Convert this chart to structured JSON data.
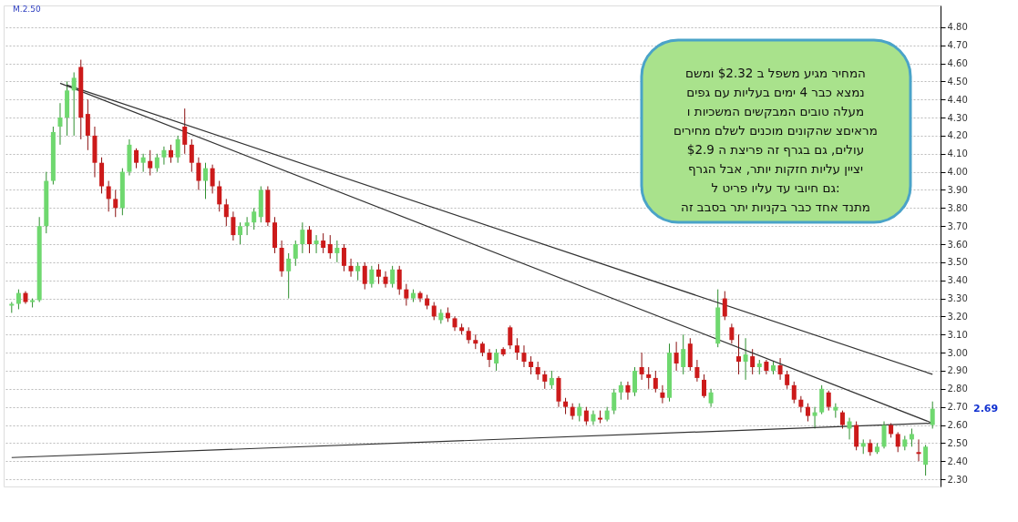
{
  "chart_data": {
    "type": "candlestick",
    "categories": [
      null,
      null,
      null,
      null,
      null,
      null,
      null,
      null,
      null,
      null,
      null,
      null,
      null,
      null,
      null,
      null,
      null,
      null,
      null,
      null,
      null,
      null,
      null,
      null,
      null,
      null,
      null,
      null,
      null,
      null,
      null,
      null,
      null,
      null,
      null,
      null,
      null,
      null,
      null,
      null,
      null,
      null,
      null,
      null,
      null,
      null,
      null,
      null,
      null,
      null,
      null,
      null,
      null,
      null,
      null,
      null,
      null,
      null,
      null,
      null,
      null,
      null,
      null,
      null,
      null,
      null,
      null,
      null,
      null,
      null,
      null,
      null,
      null,
      null,
      null,
      null,
      null,
      null,
      null,
      null,
      null,
      null,
      null,
      null,
      null,
      null,
      null,
      null,
      null,
      null,
      null,
      null,
      null,
      null,
      null,
      null,
      null,
      null,
      null,
      null,
      null,
      null,
      null,
      null,
      null,
      null,
      null,
      null,
      null,
      null,
      null,
      null,
      null,
      null,
      null,
      null,
      null,
      null,
      null,
      null,
      null,
      null,
      null,
      null,
      null,
      null,
      null,
      null,
      null,
      null,
      null,
      null,
      null,
      null
    ],
    "ohlc": [
      [
        3.26,
        3.28,
        3.22,
        3.27
      ],
      [
        3.27,
        3.35,
        3.24,
        3.33
      ],
      [
        3.33,
        3.34,
        3.27,
        3.28
      ],
      [
        3.28,
        3.3,
        3.25,
        3.29
      ],
      [
        3.29,
        3.75,
        3.28,
        3.7
      ],
      [
        3.7,
        4.0,
        3.66,
        3.95
      ],
      [
        3.95,
        4.25,
        3.93,
        4.22
      ],
      [
        4.25,
        4.38,
        4.15,
        4.3
      ],
      [
        4.3,
        4.5,
        4.2,
        4.45
      ],
      [
        4.45,
        4.55,
        4.2,
        4.52
      ],
      [
        4.58,
        4.62,
        4.18,
        4.3
      ],
      [
        4.32,
        4.4,
        4.12,
        4.2
      ],
      [
        4.2,
        4.25,
        3.97,
        4.05
      ],
      [
        4.05,
        4.08,
        3.88,
        3.92
      ],
      [
        3.92,
        3.95,
        3.78,
        3.85
      ],
      [
        3.85,
        3.9,
        3.75,
        3.8
      ],
      [
        3.8,
        4.02,
        3.76,
        4.0
      ],
      [
        4.0,
        4.18,
        3.98,
        4.15
      ],
      [
        4.12,
        4.13,
        4.02,
        4.05
      ],
      [
        4.05,
        4.1,
        4.0,
        4.08
      ],
      [
        4.06,
        4.12,
        3.98,
        4.02
      ],
      [
        4.02,
        4.1,
        4.0,
        4.08
      ],
      [
        4.08,
        4.14,
        4.04,
        4.12
      ],
      [
        4.12,
        4.15,
        4.05,
        4.08
      ],
      [
        4.08,
        4.2,
        4.05,
        4.18
      ],
      [
        4.25,
        4.35,
        4.1,
        4.15
      ],
      [
        4.15,
        4.18,
        4.0,
        4.05
      ],
      [
        4.05,
        4.08,
        3.9,
        3.95
      ],
      [
        3.95,
        4.05,
        3.85,
        4.02
      ],
      [
        4.02,
        4.04,
        3.88,
        3.92
      ],
      [
        3.92,
        3.95,
        3.78,
        3.82
      ],
      [
        3.82,
        3.85,
        3.7,
        3.75
      ],
      [
        3.75,
        3.78,
        3.62,
        3.65
      ],
      [
        3.65,
        3.72,
        3.6,
        3.7
      ],
      [
        3.7,
        3.75,
        3.65,
        3.72
      ],
      [
        3.72,
        3.8,
        3.68,
        3.78
      ],
      [
        3.75,
        3.92,
        3.72,
        3.9
      ],
      [
        3.9,
        3.92,
        3.7,
        3.72
      ],
      [
        3.72,
        3.75,
        3.55,
        3.58
      ],
      [
        3.58,
        3.62,
        3.42,
        3.45
      ],
      [
        3.45,
        3.55,
        3.3,
        3.52
      ],
      [
        3.52,
        3.62,
        3.48,
        3.6
      ],
      [
        3.6,
        3.72,
        3.55,
        3.68
      ],
      [
        3.68,
        3.7,
        3.55,
        3.6
      ],
      [
        3.6,
        3.65,
        3.55,
        3.62
      ],
      [
        3.62,
        3.66,
        3.55,
        3.58
      ],
      [
        3.6,
        3.65,
        3.52,
        3.55
      ],
      [
        3.55,
        3.62,
        3.5,
        3.58
      ],
      [
        3.58,
        3.6,
        3.45,
        3.48
      ],
      [
        3.48,
        3.52,
        3.42,
        3.45
      ],
      [
        3.45,
        3.5,
        3.4,
        3.48
      ],
      [
        3.48,
        3.5,
        3.35,
        3.38
      ],
      [
        3.38,
        3.48,
        3.36,
        3.46
      ],
      [
        3.46,
        3.49,
        3.38,
        3.42
      ],
      [
        3.42,
        3.45,
        3.36,
        3.38
      ],
      [
        3.38,
        3.48,
        3.36,
        3.46
      ],
      [
        3.46,
        3.48,
        3.32,
        3.35
      ],
      [
        3.35,
        3.38,
        3.26,
        3.3
      ],
      [
        3.3,
        3.35,
        3.28,
        3.33
      ],
      [
        3.33,
        3.34,
        3.28,
        3.3
      ],
      [
        3.3,
        3.32,
        3.24,
        3.26
      ],
      [
        3.26,
        3.28,
        3.18,
        3.2
      ],
      [
        3.18,
        3.24,
        3.16,
        3.22
      ],
      [
        3.22,
        3.25,
        3.17,
        3.19
      ],
      [
        3.19,
        3.2,
        3.12,
        3.14
      ],
      [
        3.14,
        3.16,
        3.1,
        3.12
      ],
      [
        3.12,
        3.14,
        3.05,
        3.07
      ],
      [
        3.07,
        3.1,
        3.02,
        3.05
      ],
      [
        3.05,
        3.06,
        2.98,
        3.0
      ],
      [
        3.0,
        3.02,
        2.92,
        2.96
      ],
      [
        2.94,
        3.02,
        2.9,
        3.0
      ],
      [
        3.02,
        3.03,
        2.98,
        2.99
      ],
      [
        3.14,
        3.15,
        3.02,
        3.04
      ],
      [
        3.04,
        3.08,
        2.96,
        3.0
      ],
      [
        3.0,
        3.04,
        2.92,
        2.95
      ],
      [
        2.95,
        2.98,
        2.88,
        2.92
      ],
      [
        2.92,
        2.95,
        2.85,
        2.88
      ],
      [
        2.88,
        2.9,
        2.8,
        2.84
      ],
      [
        2.82,
        2.9,
        2.8,
        2.86
      ],
      [
        2.86,
        2.87,
        2.7,
        2.73
      ],
      [
        2.73,
        2.75,
        2.66,
        2.7
      ],
      [
        2.7,
        2.72,
        2.63,
        2.65
      ],
      [
        2.65,
        2.72,
        2.62,
        2.7
      ],
      [
        2.68,
        2.7,
        2.6,
        2.62
      ],
      [
        2.62,
        2.68,
        2.6,
        2.66
      ],
      [
        2.64,
        2.68,
        2.61,
        2.63
      ],
      [
        2.63,
        2.7,
        2.62,
        2.68
      ],
      [
        2.68,
        2.8,
        2.66,
        2.78
      ],
      [
        2.78,
        2.84,
        2.74,
        2.82
      ],
      [
        2.82,
        2.84,
        2.74,
        2.78
      ],
      [
        2.78,
        2.92,
        2.76,
        2.9
      ],
      [
        2.92,
        3.0,
        2.85,
        2.88
      ],
      [
        2.88,
        2.92,
        2.8,
        2.86
      ],
      [
        2.86,
        2.9,
        2.78,
        2.8
      ],
      [
        2.78,
        2.82,
        2.72,
        2.75
      ],
      [
        2.75,
        3.05,
        2.73,
        3.0
      ],
      [
        3.0,
        3.06,
        2.9,
        2.94
      ],
      [
        2.92,
        3.1,
        2.88,
        3.02
      ],
      [
        3.05,
        3.08,
        2.9,
        2.92
      ],
      [
        2.92,
        2.96,
        2.84,
        2.86
      ],
      [
        2.85,
        2.88,
        2.75,
        2.76
      ],
      [
        2.72,
        2.8,
        2.7,
        2.78
      ],
      [
        3.05,
        3.35,
        3.03,
        3.25
      ],
      [
        3.3,
        3.34,
        3.18,
        3.2
      ],
      [
        3.14,
        3.16,
        3.05,
        3.07
      ],
      [
        2.98,
        3.1,
        2.88,
        2.95
      ],
      [
        2.95,
        3.08,
        2.85,
        2.99
      ],
      [
        2.98,
        3.02,
        2.88,
        2.92
      ],
      [
        2.92,
        2.96,
        2.88,
        2.94
      ],
      [
        2.95,
        2.96,
        2.88,
        2.9
      ],
      [
        2.9,
        2.95,
        2.88,
        2.93
      ],
      [
        2.93,
        2.97,
        2.85,
        2.88
      ],
      [
        2.88,
        2.9,
        2.8,
        2.82
      ],
      [
        2.82,
        2.84,
        2.72,
        2.74
      ],
      [
        2.74,
        2.76,
        2.67,
        2.7
      ],
      [
        2.7,
        2.72,
        2.62,
        2.65
      ],
      [
        2.65,
        2.7,
        2.58,
        2.67
      ],
      [
        2.67,
        2.82,
        2.66,
        2.8
      ],
      [
        2.78,
        2.79,
        2.68,
        2.7
      ],
      [
        2.68,
        2.72,
        2.64,
        2.7
      ],
      [
        2.67,
        2.68,
        2.58,
        2.6
      ],
      [
        2.58,
        2.64,
        2.52,
        2.62
      ],
      [
        2.6,
        2.62,
        2.46,
        2.48
      ],
      [
        2.48,
        2.52,
        2.44,
        2.5
      ],
      [
        2.5,
        2.52,
        2.43,
        2.45
      ],
      [
        2.45,
        2.5,
        2.44,
        2.48
      ],
      [
        2.48,
        2.62,
        2.47,
        2.6
      ],
      [
        2.6,
        2.61,
        2.53,
        2.55
      ],
      [
        2.55,
        2.56,
        2.45,
        2.48
      ],
      [
        2.48,
        2.54,
        2.46,
        2.52
      ],
      [
        2.52,
        2.58,
        2.48,
        2.55
      ],
      [
        2.45,
        2.52,
        2.4,
        2.44
      ],
      [
        2.38,
        2.49,
        2.32,
        2.48
      ],
      [
        2.6,
        2.73,
        2.58,
        2.69
      ]
    ],
    "series": [
      {
        "type": "line",
        "color": "#333333",
        "values": [
          null,
          null,
          null,
          null,
          null,
          null,
          null,
          null,
          4.48,
          null,
          null,
          null,
          null,
          null,
          null,
          null,
          null,
          null,
          null,
          null,
          null,
          null,
          null,
          null,
          null,
          null,
          null,
          null,
          null,
          null,
          null,
          null,
          null,
          null,
          null,
          null,
          null,
          null,
          null,
          null,
          null,
          null,
          null,
          null,
          null,
          null,
          null,
          null,
          null,
          null,
          null,
          null,
          null,
          null,
          null,
          null,
          null,
          null,
          null,
          null,
          null,
          null,
          null,
          null,
          null,
          null,
          null,
          null,
          null,
          null,
          null,
          null,
          null,
          null,
          null,
          null,
          null,
          null,
          null,
          null,
          null,
          null,
          null,
          null,
          null,
          null,
          null,
          null,
          null,
          null,
          null,
          null,
          null,
          null,
          null,
          null,
          null,
          null,
          null,
          null,
          null,
          null,
          null,
          null,
          null,
          null,
          null,
          null,
          null,
          null,
          null,
          null,
          null,
          null,
          null,
          null,
          null,
          null,
          null,
          null,
          null,
          null,
          null,
          null,
          null,
          null,
          null,
          null,
          null,
          null,
          null,
          null,
          null,
          2.88
        ]
      },
      {
        "type": "line",
        "color": "#333333",
        "values": [
          null,
          null,
          null,
          null,
          null,
          null,
          null,
          4.49,
          null,
          null,
          null,
          null,
          null,
          null,
          null,
          null,
          null,
          null,
          null,
          null,
          null,
          null,
          null,
          null,
          null,
          null,
          null,
          null,
          null,
          null,
          null,
          null,
          null,
          null,
          null,
          null,
          null,
          null,
          null,
          null,
          null,
          null,
          null,
          null,
          null,
          null,
          null,
          null,
          null,
          null,
          null,
          null,
          null,
          null,
          null,
          null,
          null,
          null,
          null,
          null,
          null,
          null,
          null,
          null,
          null,
          null,
          null,
          null,
          null,
          null,
          null,
          null,
          null,
          null,
          null,
          null,
          null,
          null,
          null,
          null,
          null,
          null,
          null,
          null,
          null,
          null,
          null,
          null,
          null,
          null,
          null,
          null,
          null,
          null,
          null,
          null,
          null,
          null,
          null,
          null,
          null,
          null,
          null,
          null,
          null,
          null,
          null,
          null,
          null,
          null,
          null,
          null,
          null,
          null,
          null,
          null,
          null,
          null,
          null,
          null,
          null,
          null,
          null,
          null,
          null,
          null,
          null,
          null,
          null,
          null,
          null,
          null,
          null,
          2.61
        ]
      },
      {
        "type": "line",
        "color": "#333333",
        "values": [
          2.42,
          null,
          null,
          null,
          null,
          null,
          null,
          null,
          null,
          null,
          null,
          null,
          null,
          null,
          null,
          null,
          null,
          null,
          null,
          null,
          null,
          null,
          null,
          null,
          null,
          null,
          null,
          null,
          null,
          null,
          null,
          null,
          null,
          null,
          null,
          null,
          null,
          null,
          null,
          null,
          null,
          null,
          null,
          null,
          null,
          null,
          null,
          null,
          null,
          null,
          null,
          null,
          null,
          null,
          null,
          null,
          null,
          null,
          null,
          null,
          null,
          null,
          null,
          null,
          null,
          null,
          null,
          null,
          null,
          null,
          null,
          null,
          null,
          null,
          null,
          null,
          null,
          null,
          null,
          null,
          null,
          null,
          null,
          null,
          null,
          null,
          null,
          null,
          null,
          null,
          null,
          null,
          null,
          null,
          null,
          null,
          null,
          null,
          null,
          null,
          null,
          null,
          null,
          null,
          null,
          null,
          null,
          null,
          null,
          null,
          null,
          null,
          null,
          null,
          null,
          null,
          null,
          null,
          null,
          null,
          null,
          null,
          null,
          null,
          null,
          null,
          null,
          null,
          null,
          null,
          null,
          null,
          null,
          2.61
        ]
      }
    ],
    "ylim": [
      2.26,
      4.92
    ],
    "yticks": [
      {
        "value": 2.3,
        "label": "2.30"
      },
      {
        "value": 2.4,
        "label": "2.40"
      },
      {
        "value": 2.5,
        "label": "2.50"
      },
      {
        "value": 2.6,
        "label": "2.60"
      },
      {
        "value": 2.7,
        "label": "2.70"
      },
      {
        "value": 2.8,
        "label": "2.80"
      },
      {
        "value": 2.9,
        "label": "2.90"
      },
      {
        "value": 3.0,
        "label": "3.00"
      },
      {
        "value": 3.1,
        "label": "3.10"
      },
      {
        "value": 3.2,
        "label": "3.20"
      },
      {
        "value": 3.3,
        "label": "3.30"
      },
      {
        "value": 3.4,
        "label": "3.40"
      },
      {
        "value": 3.5,
        "label": "3.50"
      },
      {
        "value": 3.6,
        "label": "3.60"
      },
      {
        "value": 3.7,
        "label": "3.70"
      },
      {
        "value": 3.8,
        "label": "3.80"
      },
      {
        "value": 3.9,
        "label": "3.90"
      },
      {
        "value": 4.0,
        "label": "4.00"
      },
      {
        "value": 4.1,
        "label": "4.10"
      },
      {
        "value": 4.2,
        "label": "4.20"
      },
      {
        "value": 4.3,
        "label": "4.30"
      },
      {
        "value": 4.4,
        "label": "4.40"
      },
      {
        "value": 4.5,
        "label": "4.50"
      },
      {
        "value": 4.6,
        "label": "4.60"
      },
      {
        "value": 4.7,
        "label": "4.70"
      },
      {
        "value": 4.8,
        "label": "4.80"
      }
    ],
    "tick_labels": "y",
    "grid": "y",
    "annotations": [
      "M.2.50",
      "2.69",
      "המחיר מגיע משפל ב $2.32 ומשם",
      "נמצא כבר 4 ימים בעליות עם גפים",
      "מעלה טובים המבקשים המשכיות ו",
      "מראיםצ שהקונים מוכנים לשלם מחירים",
      "עולים, גם בגרף זה פריצת ה $2.9",
      "יציין עליות חזקות יותר, אבל הגרף",
      "גם חיובי עד עליו פריט ל:",
      "מתנד אחד כבר בקניות יתר בסבב זה"
    ]
  }
}
